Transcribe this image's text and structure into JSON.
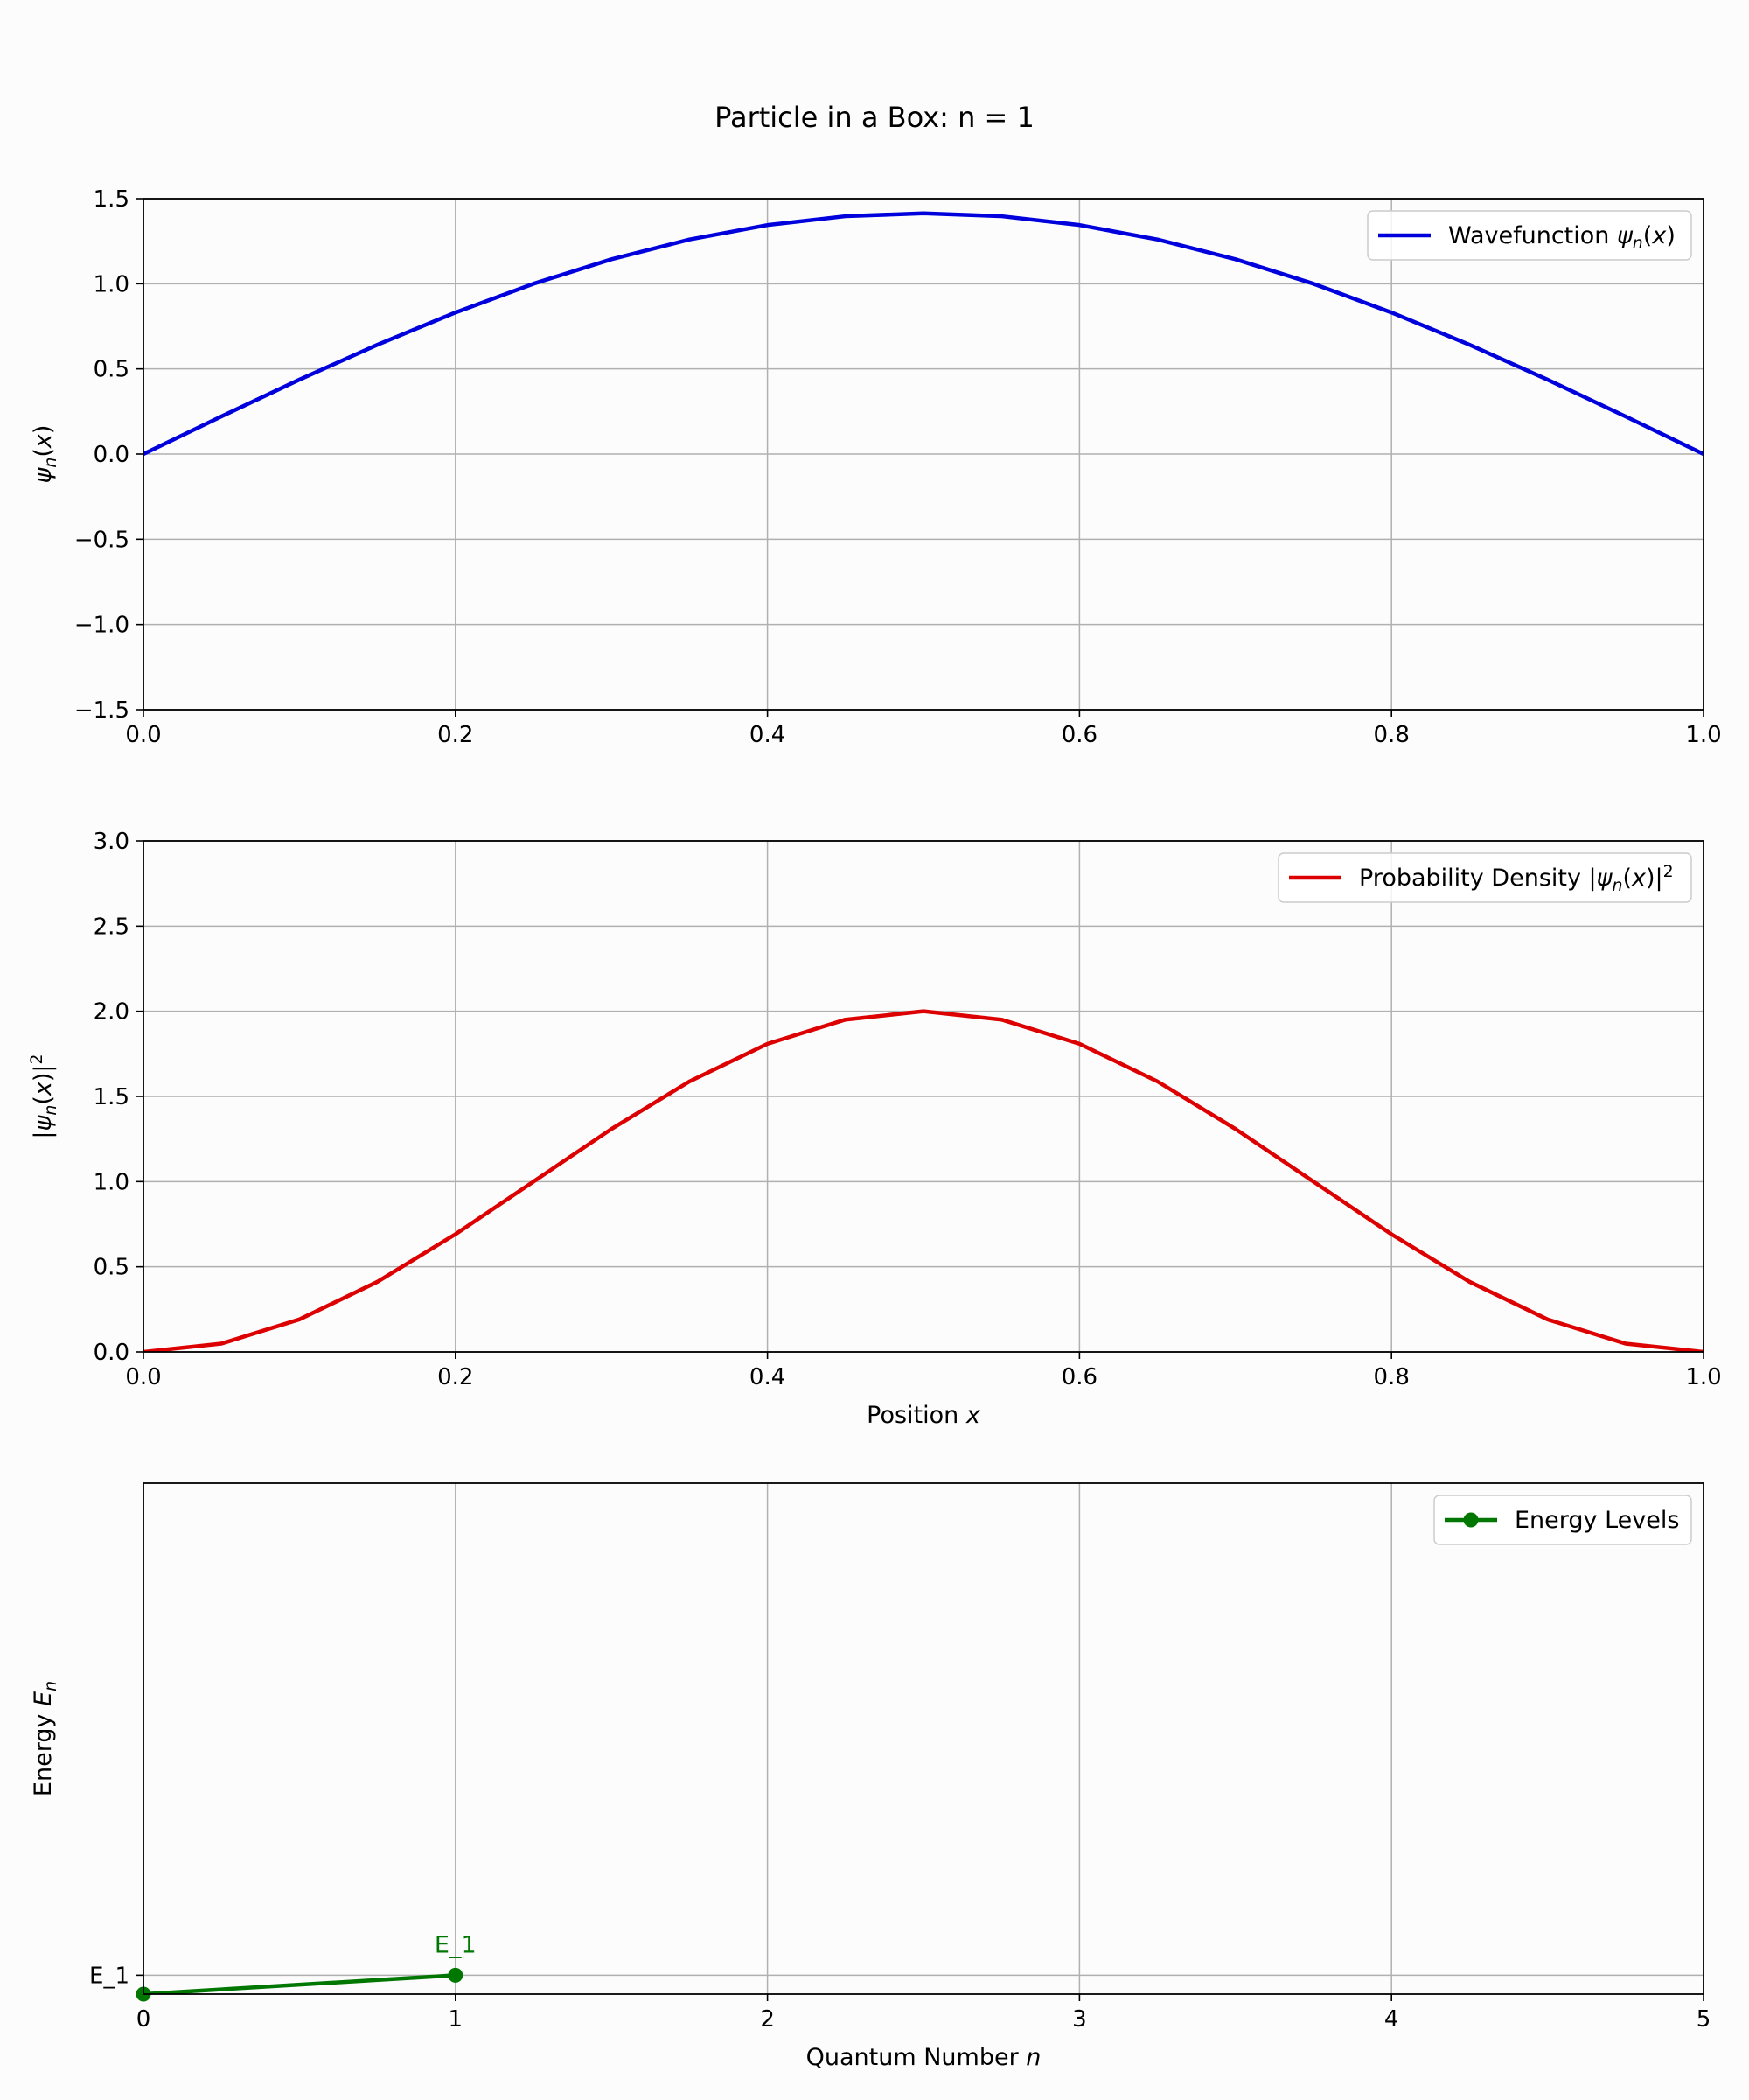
{
  "figure": {
    "title": "Particle in a Box: n = 1",
    "n": 1,
    "box_length": 1.0
  },
  "chart_data": [
    {
      "type": "line",
      "id": "wavefunction",
      "function": "sqrt(2/L) * sin(n*pi*x/L)",
      "series": [
        {
          "name": "Wavefunction ψn(x)",
          "color": "#0000dd",
          "x": [
            0,
            0.05,
            0.1,
            0.15,
            0.2,
            0.25,
            0.3,
            0.35,
            0.4,
            0.45,
            0.5,
            0.55,
            0.6,
            0.65,
            0.7,
            0.75,
            0.8,
            0.85,
            0.9,
            0.95,
            1.0
          ],
          "y": [
            0,
            0.221,
            0.437,
            0.642,
            0.831,
            1.0,
            1.144,
            1.26,
            1.345,
            1.397,
            1.414,
            1.397,
            1.345,
            1.26,
            1.144,
            1.0,
            0.831,
            0.642,
            0.437,
            0.221,
            0
          ]
        }
      ],
      "legend": {
        "label_prefix": "Wavefunction ",
        "symbol": "ψ",
        "sub": "n",
        "suffix": "(x)"
      },
      "xlim": [
        0,
        1
      ],
      "ylim": [
        -1.5,
        1.5
      ],
      "xticks": [
        0,
        0.2,
        0.4,
        0.6,
        0.8,
        1.0
      ],
      "xtick_labels": [
        "0.0",
        "0.2",
        "0.4",
        "0.6",
        "0.8",
        "1.0"
      ],
      "yticks": [
        -1.5,
        -1.0,
        -0.5,
        0.0,
        0.5,
        1.0,
        1.5
      ],
      "ytick_labels": [
        "−1.5",
        "−1.0",
        "−0.5",
        "0.0",
        "0.5",
        "1.0",
        "1.5"
      ],
      "ylabel": {
        "symbol": "ψ",
        "sub": "n",
        "suffix": "(x)"
      },
      "xlabel": null,
      "grid": true,
      "legend_position": "top-right"
    },
    {
      "type": "line",
      "id": "probability",
      "function": "(2/L) * sin(n*pi*x/L)^2",
      "series": [
        {
          "name": "Probability Density |ψn(x)|²",
          "color": "#dd0000",
          "x": [
            0,
            0.05,
            0.1,
            0.15,
            0.2,
            0.25,
            0.3,
            0.35,
            0.4,
            0.45,
            0.5,
            0.55,
            0.6,
            0.65,
            0.7,
            0.75,
            0.8,
            0.85,
            0.9,
            0.95,
            1.0
          ],
          "y": [
            0,
            0.049,
            0.191,
            0.412,
            0.691,
            1.0,
            1.309,
            1.588,
            1.809,
            1.951,
            2.0,
            1.951,
            1.809,
            1.588,
            1.309,
            1.0,
            0.691,
            0.412,
            0.191,
            0.049,
            0
          ]
        }
      ],
      "legend": {
        "label_prefix": "Probability Density |",
        "symbol": "ψ",
        "sub": "n",
        "suffix": "(x)|",
        "sup": "2"
      },
      "xlim": [
        0,
        1
      ],
      "ylim": [
        0,
        3
      ],
      "xticks": [
        0,
        0.2,
        0.4,
        0.6,
        0.8,
        1.0
      ],
      "xtick_labels": [
        "0.0",
        "0.2",
        "0.4",
        "0.6",
        "0.8",
        "1.0"
      ],
      "yticks": [
        0,
        0.5,
        1.0,
        1.5,
        2.0,
        2.5,
        3.0
      ],
      "ytick_labels": [
        "0.0",
        "0.5",
        "1.0",
        "1.5",
        "2.0",
        "2.5",
        "3.0"
      ],
      "ylabel": {
        "prefix": "|",
        "symbol": "ψ",
        "sub": "n",
        "suffix": "(x)|",
        "sup": "2"
      },
      "xlabel": {
        "prefix": "Position ",
        "italic": "x"
      },
      "grid": true,
      "legend_position": "top-right"
    },
    {
      "type": "line",
      "id": "energy",
      "series": [
        {
          "name": "Energy Levels",
          "color": "#007700",
          "marker": "circle",
          "x": [
            0,
            1
          ],
          "y": [
            0,
            1
          ]
        }
      ],
      "legend": {
        "label": "Energy Levels"
      },
      "annotations": [
        {
          "x": 1,
          "y": 1,
          "text": "E_1"
        }
      ],
      "xlim": [
        0,
        5
      ],
      "ylim": [
        0,
        27
      ],
      "xticks": [
        0,
        1,
        2,
        3,
        4,
        5
      ],
      "xtick_labels": [
        "0",
        "1",
        "2",
        "3",
        "4",
        "5"
      ],
      "yticks": [
        1
      ],
      "ytick_labels": [
        "E_1"
      ],
      "ylabel": {
        "prefix": "Energy ",
        "italic": "E",
        "sub": "n"
      },
      "xlabel": {
        "prefix": "Quantum Number ",
        "italic": "n"
      },
      "grid": true,
      "legend_position": "top-right"
    }
  ]
}
